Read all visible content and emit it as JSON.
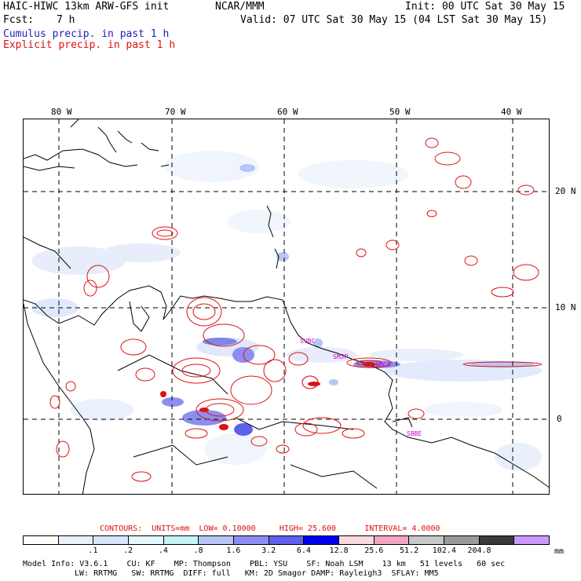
{
  "header": {
    "model_title": "HAIC-HIWC 13km ARW-GFS init",
    "org": "NCAR/MMM",
    "init": "Init: 00 UTC Sat 30 May 15",
    "fcst_label": "Fcst:",
    "fcst_value": "7 h",
    "valid": "Valid: 07 UTC Sat 30 May 15 (04 LST Sat 30 May 15)",
    "field_cumulus": "Cumulus precip. in past 1 h",
    "field_explicit": "Explicit precip. in past 1 h"
  },
  "map": {
    "lon_labels": [
      "80 W",
      "70 W",
      "60 W",
      "50 W",
      "40 W"
    ],
    "lat_labels": [
      "20 N",
      "10 N",
      "0"
    ],
    "stations": [
      "SVBC",
      "SMJP",
      "SOCA",
      "SBBE"
    ]
  },
  "contours": {
    "label": "CONTOURS:",
    "units": "UNITS=mm",
    "low": "LOW= 0.10000",
    "high": "HIGH= 25.600",
    "interval": "INTERVAL= 4.0000"
  },
  "colorbar": {
    "colors": [
      "#ffffff",
      "#e8f0fb",
      "#d7e6fa",
      "#e3f8fb",
      "#c6f3f7",
      "#b7c6f5",
      "#8d8ff0",
      "#6060ee",
      "#0000ee",
      "#f7d9e0",
      "#f4a5c4",
      "#c8c8c8",
      "#9a9a9a",
      "#3a3a3a",
      "#cc99ff"
    ],
    "labels": [
      ".1",
      ".2",
      ".4",
      ".8",
      "1.6",
      "3.2",
      "6.4",
      "12.8",
      "25.6",
      "51.2",
      "102.4",
      "204.8"
    ],
    "units": "mm"
  },
  "model_info": {
    "line1": [
      "Model Info: V3.6.1",
      "CU: KF",
      "MP: Thompson",
      "PBL: YSU",
      "SF: Noah LSM",
      "13 km",
      "51 levels",
      "60 sec"
    ],
    "line2": [
      "LW: RRTMG",
      "SW: RRTMG",
      "DIFF: full",
      "KM: 2D Smagor",
      "DAMP: Rayleigh3",
      "SFLAY: MM5"
    ]
  },
  "colors": {
    "cumulus_title": "#2222bb",
    "explicit_title": "#dd1111",
    "coast": "#000000",
    "explicit_contour": "#dd1111",
    "station_label": "#cc00cc"
  }
}
